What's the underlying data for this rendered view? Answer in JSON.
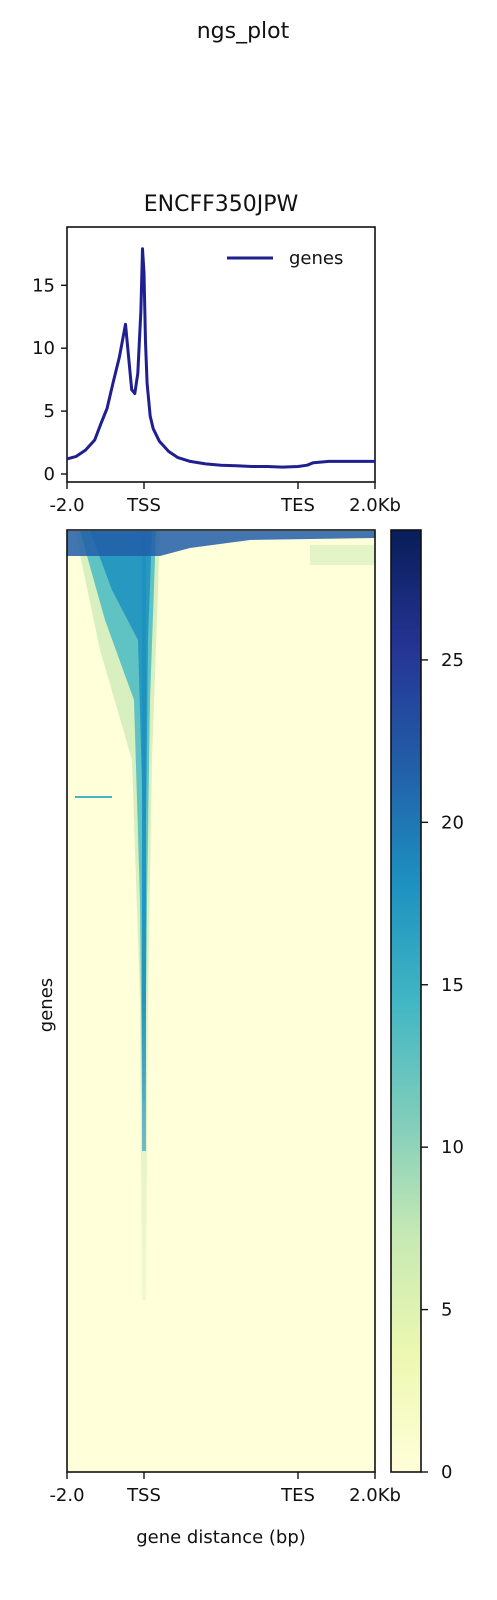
{
  "figure": {
    "suptitle": "ngs_plot"
  },
  "colors": {
    "profile_line": "#1f1f8f",
    "axis": "#111111",
    "cmap": [
      "#ffffd9",
      "#edf8b1",
      "#c7e9b4",
      "#7fcdbb",
      "#41b6c4",
      "#1d91c0",
      "#225ea8",
      "#253494",
      "#081d58"
    ]
  },
  "chart_data": [
    {
      "type": "line",
      "title": "ENCFF350JPW",
      "legend": {
        "label": "genes",
        "placement": "top-right"
      },
      "x_tick_labels": [
        "-2.0",
        "TSS",
        "TES",
        "2.0Kb"
      ],
      "x_tick_positions": [
        0,
        0.25,
        0.75,
        1.0
      ],
      "ylim": [
        0,
        19
      ],
      "y_ticks": [
        0,
        5,
        10,
        15
      ],
      "series": [
        {
          "name": "genes",
          "x": [
            0.0,
            0.03,
            0.06,
            0.09,
            0.11,
            0.13,
            0.15,
            0.17,
            0.19,
            0.21,
            0.22,
            0.23,
            0.24,
            0.245,
            0.25,
            0.255,
            0.26,
            0.27,
            0.28,
            0.3,
            0.33,
            0.36,
            0.4,
            0.45,
            0.5,
            0.55,
            0.6,
            0.65,
            0.7,
            0.75,
            0.78,
            0.8,
            0.85,
            0.9,
            0.95,
            1.0
          ],
          "y": [
            1.2,
            1.4,
            1.9,
            2.7,
            4.0,
            5.2,
            7.3,
            9.3,
            11.9,
            6.7,
            6.4,
            8.0,
            13.0,
            17.9,
            16.0,
            10.5,
            7.2,
            4.6,
            3.6,
            2.6,
            1.8,
            1.3,
            1.0,
            0.8,
            0.7,
            0.65,
            0.6,
            0.6,
            0.55,
            0.6,
            0.7,
            0.9,
            1.0,
            1.0,
            1.0,
            1.0
          ]
        }
      ]
    },
    {
      "type": "heatmap",
      "ylabel": "genes",
      "xlabel": "gene distance (bp)",
      "x_tick_labels": [
        "-2.0",
        "TSS",
        "TES",
        "2.0Kb"
      ],
      "x_tick_positions": [
        0,
        0.25,
        0.75,
        1.0
      ],
      "colorbar": {
        "range": [
          0,
          29
        ],
        "ticks": [
          0,
          5,
          10,
          15,
          20,
          25
        ]
      },
      "description_of_signal": "enrichment concentrated around TSS in top-ranked genes, fading toward bottom",
      "row_profile": {
        "rank": [
          0.0,
          0.02,
          0.1,
          0.2,
          0.3,
          0.4,
          0.5,
          0.6,
          0.7,
          1.0
        ],
        "peak_intensity": [
          22,
          20,
          19,
          17,
          14,
          10,
          6,
          3,
          1,
          0
        ]
      }
    }
  ]
}
